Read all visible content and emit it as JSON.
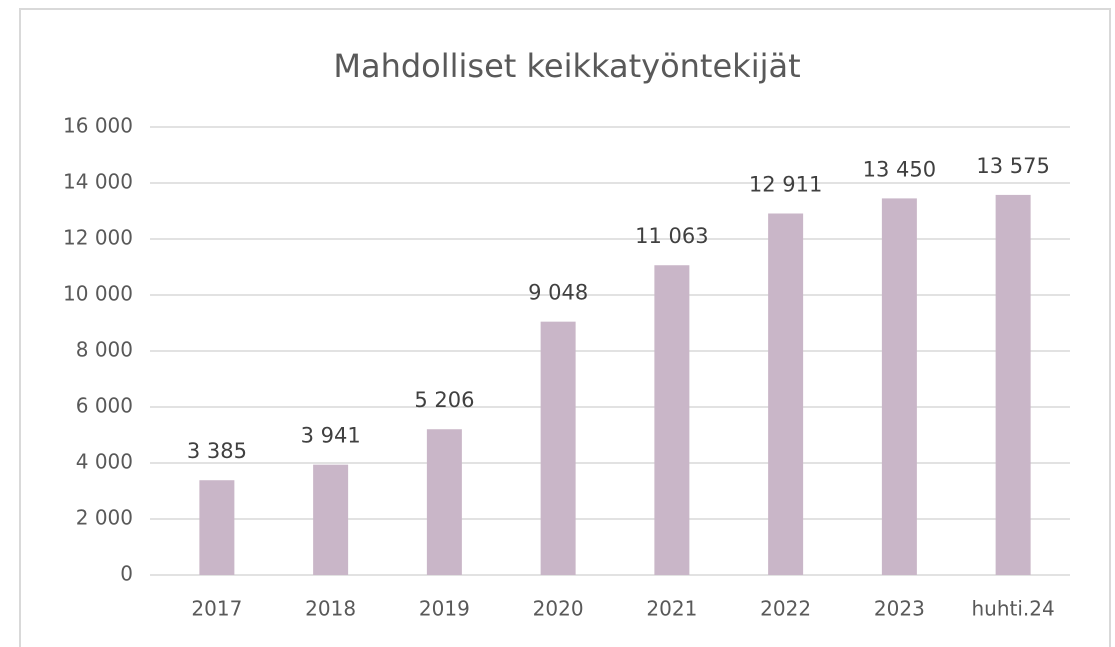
{
  "chart_data": {
    "type": "bar",
    "title": "Mahdolliset keikkatyöntekijät",
    "categories": [
      "2017",
      "2018",
      "2019",
      "2020",
      "2021",
      "2022",
      "2023",
      "huhti.24"
    ],
    "values": [
      3385,
      3941,
      5206,
      9048,
      11063,
      12911,
      13450,
      13575
    ],
    "value_labels": [
      "3 385",
      "3 941",
      "5 206",
      "9 048",
      "11 063",
      "12 911",
      "13 450",
      "13 575"
    ],
    "color": "#c9b6c8",
    "ylim": [
      0,
      16000
    ],
    "yticks": [
      0,
      {
        "value": 2000,
        "label": "2 000"
      },
      {
        "value": 4000,
        "label": "4 000"
      },
      {
        "value": 6000,
        "label": "6 000"
      },
      {
        "value": 8000,
        "label": "8 000"
      },
      {
        "value": 10000,
        "label": "10 000"
      },
      {
        "value": 12000,
        "label": "12 000"
      },
      {
        "value": 14000,
        "label": "14 000"
      },
      {
        "value": 16000,
        "label": "16 000"
      }
    ],
    "grid": true
  }
}
